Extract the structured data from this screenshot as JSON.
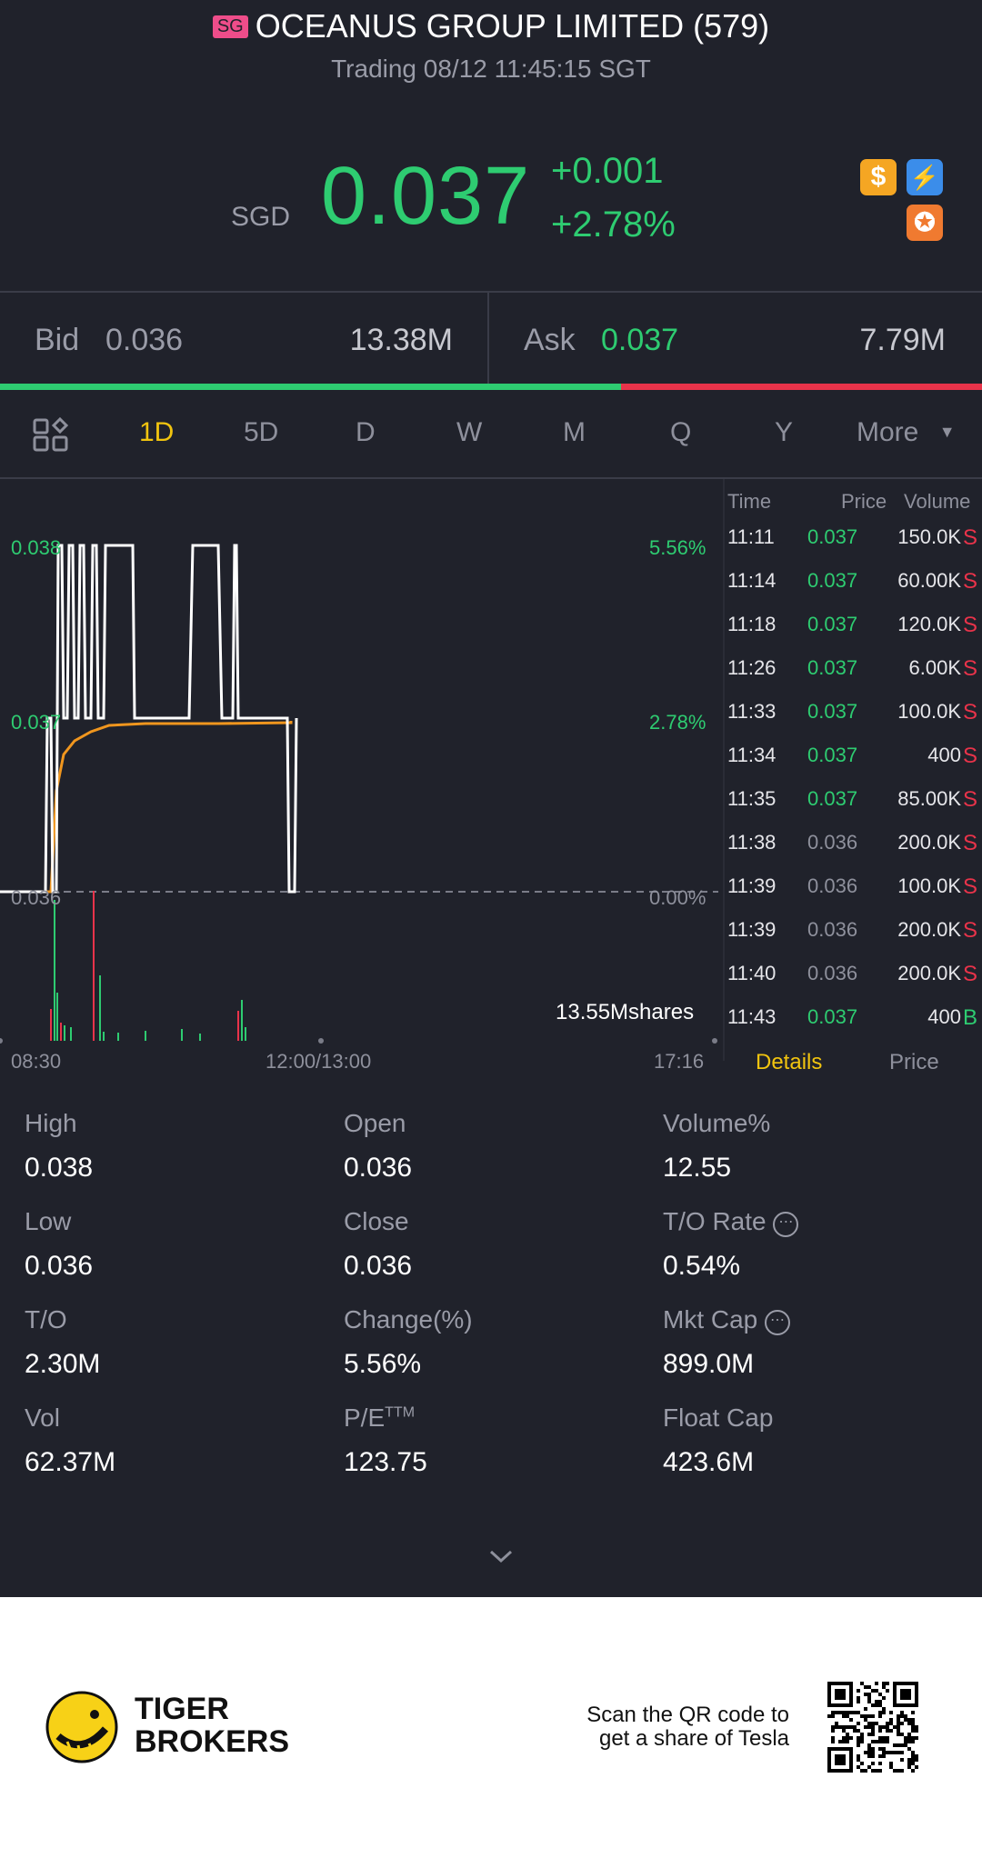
{
  "header": {
    "flag": "SG",
    "title": "OCEANUS GROUP LIMITED (579)",
    "subtitle": "Trading 08/12 11:45:15 SGT"
  },
  "quote": {
    "currency": "SGD",
    "price": "0.037",
    "change": "+0.001",
    "change_pct": "+2.78%",
    "icon_dollar": "$",
    "icon_bolt": "⚡",
    "icon_badge": "✪"
  },
  "bid_ask": {
    "bid_label": "Bid",
    "bid_price": "0.036",
    "bid_volume": "13.38M",
    "ask_label": "Ask",
    "ask_price": "0.037",
    "ask_volume": "7.79M",
    "bid_ratio": 0.632
  },
  "tabs": {
    "items": [
      "1D",
      "5D",
      "D",
      "W",
      "M",
      "Q",
      "Y"
    ],
    "active": "1D",
    "more_label": "More",
    "more_caret": "▼"
  },
  "chart": {
    "left_ticks": [
      "0.038",
      "0.037",
      "0.036"
    ],
    "right_ticks": [
      "5.56%",
      "2.78%",
      "0.00%"
    ],
    "volume_label": "13.55Mshares",
    "x_start": "08:30",
    "x_mid": "12:00/13:00",
    "x_end": "17:16"
  },
  "trades": {
    "headers": {
      "time": "Time",
      "price": "Price",
      "volume": "Volume"
    },
    "rows": [
      {
        "time": "11:11",
        "price": "0.037",
        "volume": "150.0K",
        "side": "S"
      },
      {
        "time": "11:14",
        "price": "0.037",
        "volume": "60.00K",
        "side": "S"
      },
      {
        "time": "11:18",
        "price": "0.037",
        "volume": "120.0K",
        "side": "S"
      },
      {
        "time": "11:26",
        "price": "0.037",
        "volume": "6.00K",
        "side": "S"
      },
      {
        "time": "11:33",
        "price": "0.037",
        "volume": "100.0K",
        "side": "S"
      },
      {
        "time": "11:34",
        "price": "0.037",
        "volume": "400",
        "side": "S"
      },
      {
        "time": "11:35",
        "price": "0.037",
        "volume": "85.00K",
        "side": "S"
      },
      {
        "time": "11:38",
        "price": "0.036",
        "volume": "200.0K",
        "side": "S"
      },
      {
        "time": "11:39",
        "price": "0.036",
        "volume": "100.0K",
        "side": "S"
      },
      {
        "time": "11:39",
        "price": "0.036",
        "volume": "200.0K",
        "side": "S"
      },
      {
        "time": "11:40",
        "price": "0.036",
        "volume": "200.0K",
        "side": "S"
      },
      {
        "time": "11:43",
        "price": "0.037",
        "volume": "400",
        "side": "B"
      }
    ],
    "tab_details": "Details",
    "tab_price": "Price"
  },
  "stats": {
    "high_label": "High",
    "high": "0.038",
    "open_label": "Open",
    "open": "0.036",
    "volpct_label": "Volume%",
    "volpct": "12.55",
    "low_label": "Low",
    "low": "0.036",
    "close_label": "Close",
    "close": "0.036",
    "torate_label": "T/O Rate",
    "torate": "0.54%",
    "to_label": "T/O",
    "to": "2.30M",
    "changepct_label": "Change(%)",
    "changepct": "5.56%",
    "mktcap_label": "Mkt Cap",
    "mktcap": "899.0M",
    "vol_label": "Vol",
    "vol": "62.37M",
    "pe_label": "P/E",
    "pe_sup": "TTM",
    "pe": "123.75",
    "floatcap_label": "Float Cap",
    "floatcap": "423.6M",
    "info_glyph": "⋯"
  },
  "footer": {
    "brand_line1": "TIGER",
    "brand_line2": "BROKERS",
    "promo_line1": "Scan the QR code to",
    "promo_line2": "get a share of Tesla"
  },
  "colors": {
    "up": "#2ecc71",
    "down": "#e8334a",
    "neutral": "#8e909c",
    "accent": "#f1c40f",
    "avg_line": "#f0961e"
  }
}
